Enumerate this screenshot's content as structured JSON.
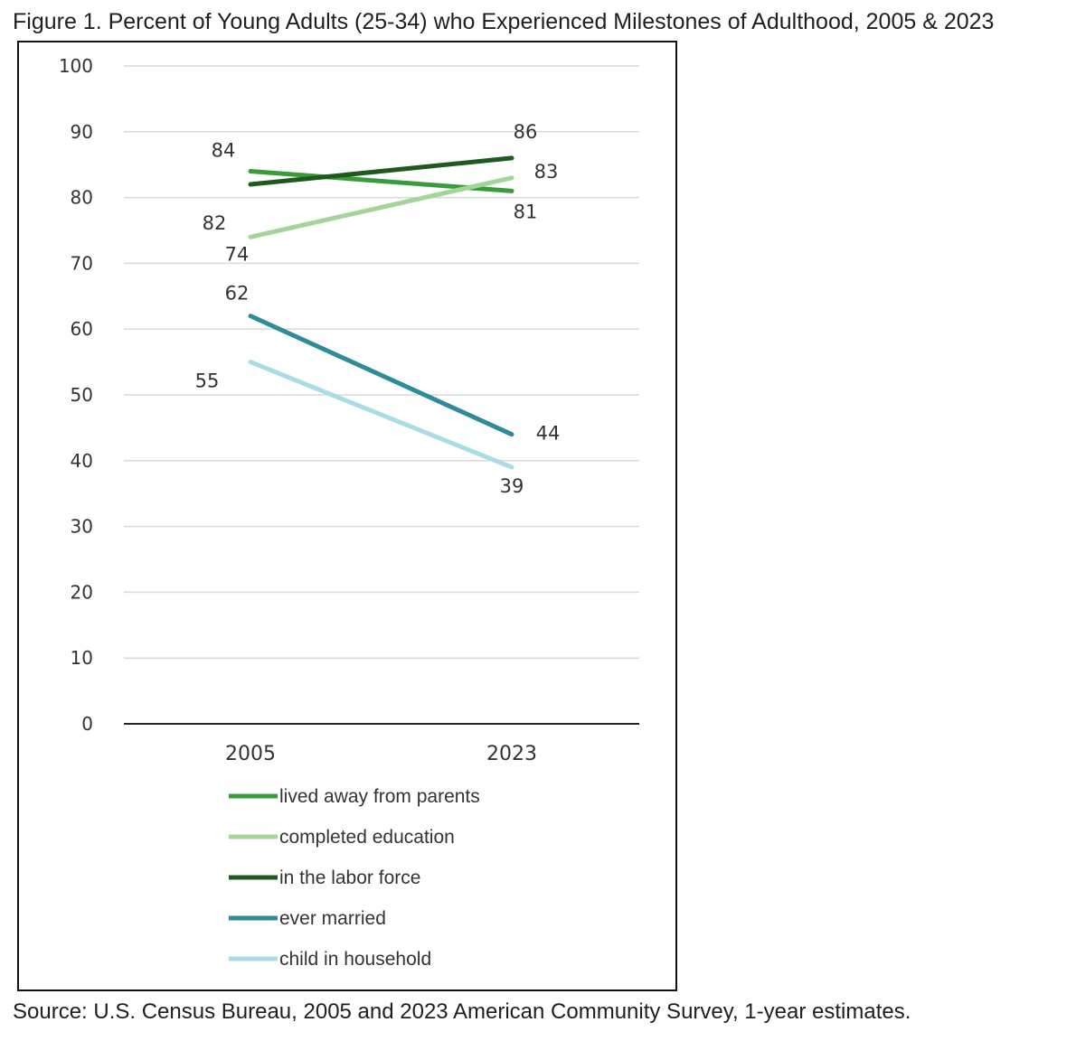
{
  "title": "Figure 1. Percent of Young Adults (25-34) who Experienced Milestones of Adulthood, 2005 & 2023",
  "source": "Source: U.S. Census Bureau, 2005 and 2023 American Community Survey, 1-year estimates.",
  "chart_data": {
    "type": "line",
    "title": "Figure 1. Percent of Young Adults (25-34) who Experienced Milestones of Adulthood, 2005 & 2023",
    "xlabel": "",
    "ylabel": "",
    "categories": [
      "2005",
      "2023"
    ],
    "ylim": [
      0,
      100
    ],
    "yticks": [
      "0",
      "10",
      "20",
      "30",
      "40",
      "50",
      "60",
      "70",
      "80",
      "90",
      "100"
    ],
    "grid": true,
    "legend_position": "bottom",
    "series": [
      {
        "name": "lived away from parents",
        "values": [
          84,
          81
        ],
        "color": "#3a9b3a"
      },
      {
        "name": "completed education",
        "values": [
          74,
          83
        ],
        "color": "#a3d49a"
      },
      {
        "name": "in the labor force",
        "values": [
          82,
          86
        ],
        "color": "#1e5a1e"
      },
      {
        "name": "ever married",
        "values": [
          62,
          44
        ],
        "color": "#2f8a99"
      },
      {
        "name": "child in household",
        "values": [
          55,
          39
        ],
        "color": "#a8dde6"
      }
    ]
  }
}
